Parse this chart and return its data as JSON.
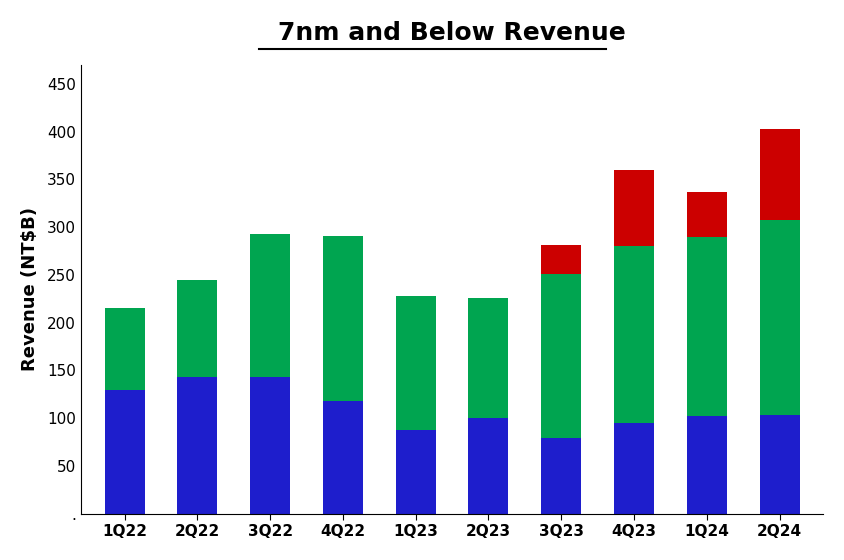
{
  "categories": [
    "1Q22",
    "2Q22",
    "3Q22",
    "4Q22",
    "1Q23",
    "2Q23",
    "3Q23",
    "4Q23",
    "1Q24",
    "2Q24"
  ],
  "blue_values": [
    130,
    143,
    143,
    118,
    88,
    100,
    79,
    95,
    102,
    103
  ],
  "green_values": [
    85,
    102,
    150,
    173,
    140,
    126,
    172,
    185,
    188,
    205
  ],
  "red_values": [
    0,
    0,
    0,
    0,
    0,
    0,
    30,
    80,
    47,
    95
  ],
  "blue_color": "#1E1ECC",
  "green_color": "#00A550",
  "red_color": "#CC0000",
  "title": "7nm and Below Revenue",
  "ylabel": "Revenue (NT$B)",
  "ytick_values": [
    0,
    50,
    100,
    150,
    200,
    250,
    300,
    350,
    400,
    450
  ],
  "ylim": [
    0,
    470
  ],
  "background_color": "#FFFFFF",
  "bar_width": 0.55
}
